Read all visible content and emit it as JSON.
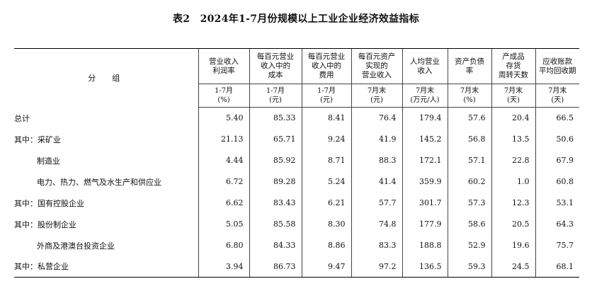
{
  "title": "表2　2024年1-7月份规模以上工业企业经济效益指标",
  "group_header": "分　组",
  "columns": [
    {
      "line1": "营业收入",
      "line2": "利润率",
      "line3": "",
      "period": "1-7月",
      "unit": "(%)"
    },
    {
      "line1": "每百元营业",
      "line2": "收入中的",
      "line3": "成本",
      "period": "1-7月",
      "unit": "(元)"
    },
    {
      "line1": "每百元营业",
      "line2": "收入中的",
      "line3": "费用",
      "period": "1-7月",
      "unit": "(元)"
    },
    {
      "line1": "每百元资产",
      "line2": "实现的",
      "line3": "营业收入",
      "period": "7月末",
      "unit": "(元)"
    },
    {
      "line1": "人均营业",
      "line2": "收入",
      "line3": "",
      "period": "7月末",
      "unit": "(万元/人)"
    },
    {
      "line1": "资产负债",
      "line2": "率",
      "line3": "",
      "period": "7月末",
      "unit": "(%)"
    },
    {
      "line1": "产成品",
      "line2": "存货",
      "line3": "周转天数",
      "period": "7月末",
      "unit": "(天)"
    },
    {
      "line1": "应收账款",
      "line2": "平均回收期",
      "line3": "",
      "period": "7月末",
      "unit": "(天)"
    }
  ],
  "rows": [
    {
      "label": "总计",
      "values": [
        "5.40",
        "85.33",
        "8.41",
        "76.4",
        "179.4",
        "57.6",
        "20.4",
        "66.5"
      ]
    },
    {
      "label": "其中：采矿业",
      "values": [
        "21.13",
        "65.71",
        "9.24",
        "41.9",
        "145.2",
        "56.8",
        "13.5",
        "50.6"
      ]
    },
    {
      "label": "制造业",
      "values": [
        "4.44",
        "85.92",
        "8.71",
        "88.3",
        "172.1",
        "57.1",
        "22.8",
        "67.9"
      ]
    },
    {
      "label": "电力、热力、燃气及水生产和供应业",
      "values": [
        "6.72",
        "89.28",
        "5.24",
        "41.4",
        "359.9",
        "60.2",
        "1.0",
        "60.8"
      ]
    },
    {
      "label": "其中：国有控股企业",
      "values": [
        "6.62",
        "83.43",
        "6.21",
        "57.7",
        "301.7",
        "57.3",
        "12.3",
        "53.1"
      ]
    },
    {
      "label": "其中：股份制企业",
      "values": [
        "5.05",
        "85.58",
        "8.30",
        "74.8",
        "177.9",
        "58.6",
        "20.5",
        "64.3"
      ]
    },
    {
      "label": "外商及港澳台投资企业",
      "values": [
        "6.80",
        "84.33",
        "8.86",
        "83.3",
        "188.8",
        "52.9",
        "19.6",
        "75.7"
      ]
    },
    {
      "label": "其中：私营企业",
      "values": [
        "3.94",
        "86.73",
        "9.47",
        "97.2",
        "136.5",
        "59.3",
        "24.5",
        "68.1"
      ]
    }
  ]
}
